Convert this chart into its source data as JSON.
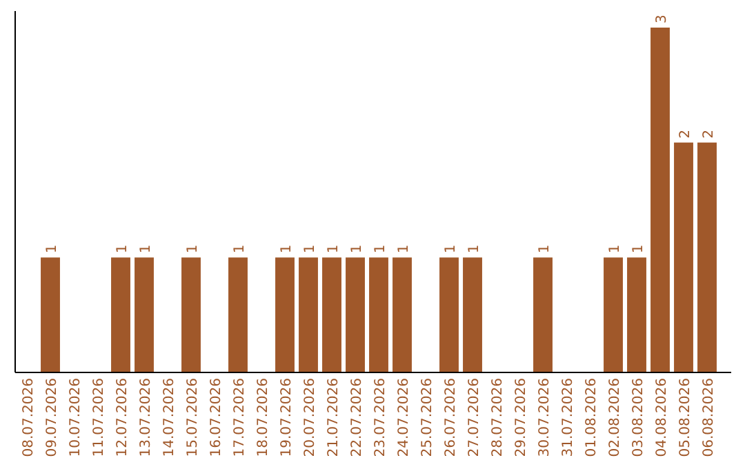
{
  "chart_data": {
    "type": "bar",
    "categories": [
      "08.07.2026",
      "09.07.2026",
      "10.07.2026",
      "11.07.2026",
      "12.07.2026",
      "13.07.2026",
      "14.07.2026",
      "15.07.2026",
      "16.07.2026",
      "17.07.2026",
      "18.07.2026",
      "19.07.2026",
      "20.07.2026",
      "21.07.2026",
      "22.07.2026",
      "23.07.2026",
      "24.07.2026",
      "25.07.2026",
      "26.07.2026",
      "27.07.2026",
      "28.07.2026",
      "29.07.2026",
      "30.07.2026",
      "31.07.2026",
      "01.08.2026",
      "02.08.2026",
      "03.08.2026",
      "04.08.2026",
      "05.08.2026",
      "06.08.2026"
    ],
    "values": [
      0,
      1,
      0,
      0,
      1,
      1,
      0,
      1,
      0,
      1,
      0,
      1,
      1,
      1,
      1,
      1,
      1,
      0,
      1,
      1,
      0,
      0,
      1,
      0,
      0,
      1,
      1,
      3,
      2,
      2
    ],
    "value_labels": [
      null,
      "1",
      null,
      null,
      "1",
      "1",
      null,
      "1",
      null,
      "1",
      null,
      "1",
      "1",
      "1",
      "1",
      "1",
      "1",
      null,
      "1",
      "1",
      null,
      null,
      "1",
      null,
      null,
      "1",
      "1",
      "3",
      "2",
      "2"
    ],
    "color": "#a0582a",
    "tick_labels": "x"
  }
}
